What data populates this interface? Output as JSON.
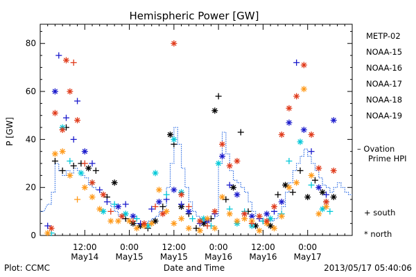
{
  "chart_data": {
    "type": "scatter",
    "title": "Hemispheric Power [GW]",
    "xlabel": "Date and Time",
    "ylabel": "P [GW]",
    "ylim": [
      0,
      88
    ],
    "xlim_hours": [
      0,
      84
    ],
    "y_ticks": [
      0,
      20,
      40,
      60,
      80
    ],
    "x_ticks": [
      {
        "h": 12,
        "time": "12:00",
        "date": "May14"
      },
      {
        "h": 24,
        "time": "0:00",
        "date": "May15"
      },
      {
        "h": 36,
        "time": "12:00",
        "date": "May15"
      },
      {
        "h": 48,
        "time": "0:00",
        "date": "May16"
      },
      {
        "h": 60,
        "time": "12:00",
        "date": "May16"
      },
      {
        "h": 72,
        "time": "0:00",
        "date": "May17"
      }
    ],
    "series": [
      {
        "name": "METP-02",
        "color": "#000000",
        "points": [
          [
            4,
            31,
            "s"
          ],
          [
            6,
            27,
            "s"
          ],
          [
            7,
            45,
            "s"
          ],
          [
            9,
            29,
            "s"
          ],
          [
            11,
            30,
            "s"
          ],
          [
            13,
            28,
            "n"
          ],
          [
            15,
            27,
            "s"
          ],
          [
            18,
            16,
            "s"
          ],
          [
            20,
            22,
            "n"
          ],
          [
            23,
            7,
            "s"
          ],
          [
            25,
            5,
            "n"
          ],
          [
            27,
            4,
            "n"
          ],
          [
            29,
            3,
            "s"
          ],
          [
            31,
            6,
            "n"
          ],
          [
            33,
            12,
            "s"
          ],
          [
            35,
            42,
            "n"
          ],
          [
            36,
            38,
            "s"
          ],
          [
            38,
            12,
            "n"
          ],
          [
            40,
            9,
            "s"
          ],
          [
            42,
            3,
            "s"
          ],
          [
            44,
            5,
            "n"
          ],
          [
            46,
            7,
            "s"
          ],
          [
            47,
            52,
            "n"
          ],
          [
            48,
            58,
            "s"
          ],
          [
            50,
            15,
            "s"
          ],
          [
            52,
            20,
            "n"
          ],
          [
            54,
            43,
            "s"
          ],
          [
            56,
            10,
            "s"
          ],
          [
            58,
            4,
            "n"
          ],
          [
            60,
            6,
            "s"
          ],
          [
            62,
            4,
            "n"
          ],
          [
            64,
            17,
            "s"
          ],
          [
            66,
            21,
            "n"
          ],
          [
            68,
            18,
            "s"
          ],
          [
            70,
            27,
            "s"
          ],
          [
            72,
            16,
            "n"
          ],
          [
            74,
            23,
            "s"
          ],
          [
            76,
            18,
            "n"
          ],
          [
            77,
            14,
            "s"
          ],
          [
            79,
            16,
            "n"
          ]
        ]
      },
      {
        "name": "NOAA-15",
        "color": "#1a1acc",
        "points": [
          [
            2,
            4,
            "s"
          ],
          [
            4,
            60,
            "n"
          ],
          [
            5,
            75,
            "s"
          ],
          [
            7,
            49,
            "s"
          ],
          [
            9,
            40,
            "s"
          ],
          [
            10,
            56,
            "s"
          ],
          [
            12,
            35,
            "n"
          ],
          [
            14,
            30,
            "s"
          ],
          [
            16,
            19,
            "s"
          ],
          [
            18,
            14,
            "s"
          ],
          [
            21,
            12,
            "n"
          ],
          [
            23,
            13,
            "s"
          ],
          [
            25,
            8,
            "n"
          ],
          [
            27,
            5,
            "s"
          ],
          [
            30,
            11,
            "s"
          ],
          [
            32,
            14,
            "n"
          ],
          [
            34,
            15,
            "s"
          ],
          [
            36,
            19,
            "n"
          ],
          [
            38,
            13,
            "s"
          ],
          [
            40,
            10,
            "n"
          ],
          [
            43,
            5,
            "s"
          ],
          [
            45,
            6,
            "n"
          ],
          [
            47,
            9,
            "s"
          ],
          [
            49,
            33,
            "n"
          ],
          [
            51,
            21,
            "s"
          ],
          [
            53,
            17,
            "n"
          ],
          [
            55,
            9,
            "s"
          ],
          [
            57,
            8,
            "n"
          ],
          [
            59,
            7,
            "s"
          ],
          [
            61,
            9,
            "n"
          ],
          [
            63,
            10,
            "s"
          ],
          [
            65,
            14,
            "n"
          ],
          [
            67,
            47,
            "n"
          ],
          [
            69,
            72,
            "s"
          ],
          [
            71,
            44,
            "n"
          ],
          [
            73,
            35,
            "s"
          ],
          [
            75,
            20,
            "n"
          ],
          [
            77,
            17,
            "s"
          ],
          [
            79,
            48,
            "n"
          ]
        ]
      },
      {
        "name": "NOAA-16",
        "color": "#00c8d8",
        "points": [
          [
            3,
            1,
            "s"
          ],
          [
            6,
            45,
            "n"
          ],
          [
            8,
            31,
            "s"
          ],
          [
            11,
            26,
            "n"
          ],
          [
            14,
            22,
            "s"
          ],
          [
            17,
            10,
            "n"
          ],
          [
            20,
            13,
            "s"
          ],
          [
            23,
            9,
            "n"
          ],
          [
            26,
            7,
            "s"
          ],
          [
            29,
            4,
            "n"
          ],
          [
            31,
            26,
            "n"
          ],
          [
            34,
            17,
            "s"
          ],
          [
            36,
            40,
            "n"
          ],
          [
            38,
            18,
            "n"
          ],
          [
            41,
            7,
            "s"
          ],
          [
            44,
            7,
            "n"
          ],
          [
            46,
            4,
            "s"
          ],
          [
            48,
            30,
            "n"
          ],
          [
            51,
            11,
            "s"
          ],
          [
            53,
            5,
            "n"
          ],
          [
            55,
            10,
            "s"
          ],
          [
            57,
            4,
            "n"
          ],
          [
            60,
            6,
            "s"
          ],
          [
            62,
            7,
            "n"
          ],
          [
            65,
            9,
            "s"
          ],
          [
            67,
            31,
            "s"
          ],
          [
            70,
            39,
            "n"
          ],
          [
            73,
            21,
            "s"
          ],
          [
            76,
            11,
            "n"
          ],
          [
            78,
            10,
            "s"
          ]
        ]
      },
      {
        "name": "NOAA-17",
        "color": "#20e0a0",
        "points": []
      },
      {
        "name": "NOAA-18",
        "color": "#ff9a1a",
        "points": [
          [
            2,
            1,
            "n"
          ],
          [
            4,
            34,
            "n"
          ],
          [
            6,
            35,
            "n"
          ],
          [
            8,
            25,
            "n"
          ],
          [
            10,
            15,
            "s"
          ],
          [
            12,
            20,
            "n"
          ],
          [
            14,
            16,
            "n"
          ],
          [
            16,
            11,
            "n"
          ],
          [
            19,
            6,
            "n"
          ],
          [
            21,
            6,
            "n"
          ],
          [
            24,
            6,
            "n"
          ],
          [
            26,
            3,
            "n"
          ],
          [
            28,
            4,
            "n"
          ],
          [
            30,
            5,
            "n"
          ],
          [
            32,
            19,
            "n"
          ],
          [
            34,
            10,
            "n"
          ],
          [
            36,
            5,
            "n"
          ],
          [
            38,
            7,
            "n"
          ],
          [
            40,
            3,
            "n"
          ],
          [
            43,
            2,
            "n"
          ],
          [
            45,
            7,
            "n"
          ],
          [
            47,
            3,
            "n"
          ],
          [
            49,
            16,
            "n"
          ],
          [
            51,
            9,
            "n"
          ],
          [
            53,
            6,
            "n"
          ],
          [
            55,
            7,
            "n"
          ],
          [
            57,
            6,
            "n"
          ],
          [
            59,
            2,
            "n"
          ],
          [
            61,
            5,
            "n"
          ],
          [
            63,
            3,
            "n"
          ],
          [
            65,
            8,
            "n"
          ],
          [
            67,
            20,
            "n"
          ],
          [
            69,
            22,
            "n"
          ],
          [
            71,
            61,
            "n"
          ],
          [
            73,
            25,
            "n"
          ],
          [
            75,
            9,
            "n"
          ],
          [
            77,
            12,
            "n"
          ]
        ]
      },
      {
        "name": "NOAA-19",
        "color": "#e03a1a",
        "points": [
          [
            3,
            3,
            "n"
          ],
          [
            4,
            51,
            "n"
          ],
          [
            6,
            44,
            "n"
          ],
          [
            7,
            73,
            "n"
          ],
          [
            8,
            60,
            "n"
          ],
          [
            9,
            72,
            "s"
          ],
          [
            10,
            48,
            "n"
          ],
          [
            12,
            30,
            "s"
          ],
          [
            14,
            22,
            "n"
          ],
          [
            17,
            17,
            "n"
          ],
          [
            19,
            10,
            "s"
          ],
          [
            22,
            8,
            "n"
          ],
          [
            25,
            6,
            "s"
          ],
          [
            28,
            5,
            "n"
          ],
          [
            31,
            12,
            "s"
          ],
          [
            33,
            9,
            "n"
          ],
          [
            36,
            80,
            "n"
          ],
          [
            38,
            17,
            "n"
          ],
          [
            40,
            12,
            "s"
          ],
          [
            43,
            6,
            "n"
          ],
          [
            45,
            4,
            "s"
          ],
          [
            47,
            10,
            "n"
          ],
          [
            49,
            38,
            "n"
          ],
          [
            51,
            29,
            "n"
          ],
          [
            53,
            31,
            "n"
          ],
          [
            55,
            9,
            "n"
          ],
          [
            57,
            5,
            "s"
          ],
          [
            59,
            8,
            "n"
          ],
          [
            61,
            6,
            "n"
          ],
          [
            63,
            12,
            "n"
          ],
          [
            65,
            42,
            "n"
          ],
          [
            67,
            53,
            "n"
          ],
          [
            69,
            58,
            "n"
          ],
          [
            71,
            71,
            "n"
          ],
          [
            73,
            42,
            "n"
          ],
          [
            75,
            28,
            "n"
          ],
          [
            77,
            14,
            "n"
          ],
          [
            79,
            27,
            "n"
          ]
        ]
      }
    ],
    "ovation": {
      "name": "Ovation Prime HPI",
      "color": "#1a5fe0",
      "x": [
        0,
        2,
        3,
        4,
        5,
        6,
        7,
        8,
        9,
        10,
        11,
        12,
        13,
        14,
        15,
        16,
        17,
        18,
        19,
        20,
        21,
        22,
        23,
        24,
        25,
        26,
        27,
        28,
        29,
        30,
        31,
        32,
        33,
        34,
        35,
        36,
        37,
        38,
        39,
        40,
        41,
        42,
        43,
        44,
        45,
        46,
        47,
        48,
        49,
        50,
        51,
        52,
        53,
        54,
        55,
        56,
        57,
        58,
        59,
        60,
        61,
        62,
        63,
        64,
        65,
        66,
        67,
        68,
        69,
        70,
        71,
        72,
        73,
        74,
        75,
        76,
        77,
        78,
        79,
        80,
        81,
        82,
        83
      ],
      "y": [
        10,
        13,
        18,
        30,
        27,
        25,
        27,
        26,
        28,
        27,
        25,
        24,
        21,
        20,
        19,
        18,
        17,
        14,
        12,
        10,
        8,
        7,
        6,
        6,
        5,
        5,
        5,
        5,
        6,
        7,
        8,
        10,
        12,
        20,
        30,
        45,
        38,
        28,
        20,
        14,
        10,
        8,
        7,
        7,
        7,
        7,
        8,
        30,
        43,
        34,
        27,
        23,
        22,
        20,
        18,
        14,
        10,
        8,
        7,
        6,
        6,
        6,
        7,
        9,
        12,
        18,
        22,
        27,
        30,
        33,
        36,
        33,
        30,
        27,
        24,
        21,
        20,
        18,
        20,
        22,
        20,
        18,
        17
      ],
      "step": 1
    },
    "legend": [
      "METP-02",
      "NOAA-15",
      "NOAA-16",
      "NOAA-17",
      "NOAA-18",
      "NOAA-19"
    ],
    "ovation_legend": [
      "– Ovation",
      "Prime HPI"
    ],
    "marker_legend": [
      {
        "symbol": "+",
        "label": "south"
      },
      {
        "symbol": "*",
        "label": "north"
      }
    ]
  },
  "footer": {
    "plot_label": "Plot: CCMC",
    "timestamp": "2013/05/17 05:40:06"
  }
}
